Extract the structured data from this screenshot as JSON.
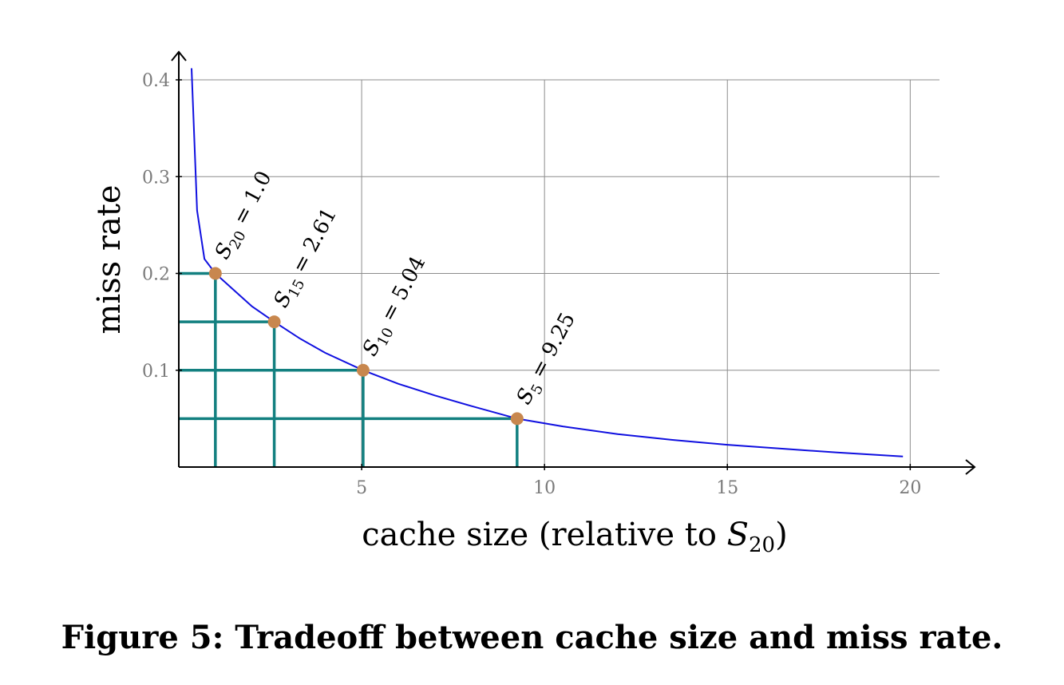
{
  "caption": "Figure 5: Tradeoff between cache size and miss rate.",
  "chart_data": {
    "type": "line",
    "xlabel": "cache size (relative to S20)",
    "xlabel_parts": {
      "text": "cache size (relative to ",
      "var": "S",
      "sub": "20",
      "close": ")"
    },
    "ylabel": "miss rate",
    "xlim": [
      0,
      20.8
    ],
    "ylim": [
      0,
      0.4
    ],
    "x_ticks": [
      5,
      10,
      15,
      20
    ],
    "y_ticks": [
      0.1,
      0.2,
      0.3,
      0.4
    ],
    "x_tick_labels": [
      "5",
      "10",
      "15",
      "20"
    ],
    "y_tick_labels": [
      "0.1",
      "0.2",
      "0.3",
      "0.4"
    ],
    "grid": true,
    "colors": {
      "curve": "#1010e0",
      "guides": "#138080",
      "points": "#c8874e",
      "grid": "#8c8c8c"
    },
    "series": [
      {
        "x": [
          0.35,
          0.5,
          0.7,
          1.0,
          1.5,
          2.0,
          2.61,
          3.3,
          4.0,
          5.04,
          6.0,
          7.0,
          8.0,
          9.25,
          10.5,
          12.0,
          13.5,
          15.0,
          16.5,
          18.0,
          19.8
        ],
        "y": [
          0.412,
          0.265,
          0.215,
          0.2,
          0.183,
          0.166,
          0.15,
          0.133,
          0.118,
          0.1,
          0.086,
          0.074,
          0.063,
          0.05,
          0.042,
          0.034,
          0.028,
          0.023,
          0.019,
          0.015,
          0.011
        ]
      }
    ],
    "points": [
      {
        "x": 1.0,
        "y": 0.2,
        "label": "S20 = 1.0",
        "var": "S",
        "sub": "20",
        "rest": " = 1.0"
      },
      {
        "x": 2.61,
        "y": 0.15,
        "label": "S15 = 2.61",
        "var": "S",
        "sub": "15",
        "rest": " = 2.61"
      },
      {
        "x": 5.04,
        "y": 0.1,
        "label": "S10 = 5.04",
        "var": "S",
        "sub": "10",
        "rest": " = 5.04"
      },
      {
        "x": 9.25,
        "y": 0.05,
        "label": "S5 = 9.25",
        "var": "S",
        "sub": "5",
        "rest": " = 9.25"
      }
    ]
  }
}
